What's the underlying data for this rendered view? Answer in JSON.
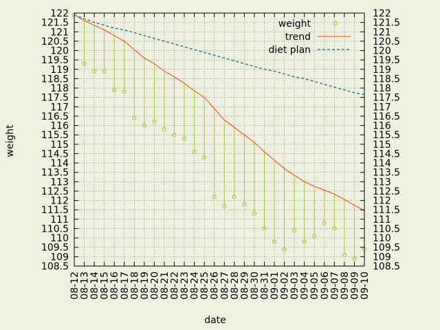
{
  "chart_data": {
    "type": "line",
    "title": "",
    "xlabel": "date",
    "ylabel": "weight",
    "ylim": [
      108.5,
      122
    ],
    "yticks": [
      "122",
      "121.5",
      "121",
      "120.5",
      "120",
      "119.5",
      "119",
      "118.5",
      "118",
      "117.5",
      "117",
      "116.5",
      "116",
      "115.5",
      "115",
      "114.5",
      "114",
      "113.5",
      "113",
      "112.5",
      "112",
      "111.5",
      "111",
      "110.5",
      "110",
      "109.5",
      "109",
      "108.5"
    ],
    "x": [
      "08-12",
      "08-13",
      "08-14",
      "08-15",
      "08-16",
      "08-17",
      "08-18",
      "08-19",
      "08-20",
      "08-21",
      "08-22",
      "08-23",
      "08-24",
      "08-25",
      "08-26",
      "08-27",
      "08-28",
      "08-29",
      "08-30",
      "08-31",
      "09-01",
      "09-02",
      "09-03",
      "09-04",
      "09-05",
      "09-06",
      "09-07",
      "09-08",
      "09-09",
      "09-10"
    ],
    "grid": true,
    "legend_position": "top-right",
    "series": [
      {
        "name": "weight",
        "style": "points-with-impulses-to-trend",
        "color": "#9acd32",
        "values": [
          121.9,
          119.3,
          118.9,
          118.9,
          117.9,
          117.8,
          116.4,
          116.0,
          116.2,
          115.8,
          115.5,
          115.3,
          114.6,
          114.3,
          112.2,
          111.7,
          112.2,
          111.8,
          111.3,
          110.5,
          109.8,
          109.4,
          110.4,
          109.8,
          110.1,
          110.8,
          110.5,
          109.1,
          108.9,
          109.4
        ]
      },
      {
        "name": "trend",
        "style": "line",
        "color": "#ff4500",
        "values": [
          121.9,
          121.6,
          121.35,
          121.1,
          120.8,
          120.5,
          120.05,
          119.6,
          119.3,
          118.9,
          118.6,
          118.25,
          117.85,
          117.5,
          116.9,
          116.3,
          115.9,
          115.5,
          115.1,
          114.6,
          114.15,
          113.7,
          113.35,
          113.0,
          112.75,
          112.55,
          112.35,
          112.05,
          111.75,
          111.45
        ]
      },
      {
        "name": "diet plan",
        "style": "dashed-line",
        "color": "#2e8b8b",
        "values": [
          121.9,
          121.7,
          121.5,
          121.35,
          121.2,
          121.1,
          120.95,
          120.8,
          120.65,
          120.5,
          120.35,
          120.2,
          120.05,
          119.9,
          119.75,
          119.6,
          119.45,
          119.3,
          119.15,
          119.0,
          118.9,
          118.75,
          118.6,
          118.5,
          118.35,
          118.2,
          118.05,
          117.9,
          117.75,
          117.65
        ]
      }
    ]
  }
}
